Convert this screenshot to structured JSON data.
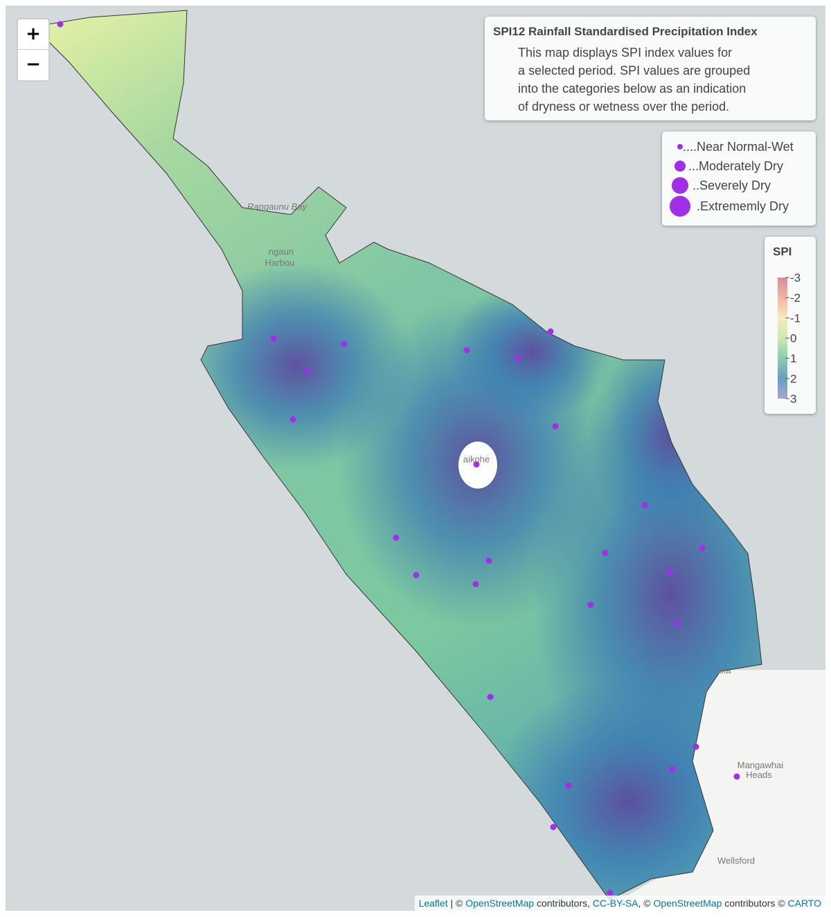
{
  "zoom_controls": {
    "zoom_in": "+",
    "zoom_out": "−"
  },
  "info": {
    "title": "SPI12 Rainfall Standardised Precipitation Index",
    "lines": [
      "This map displays SPI index values for",
      "a selected period. SPI values are grouped",
      "into the categories below as an indication",
      "of dryness or wetness over the period."
    ]
  },
  "legend": {
    "items": [
      "....Near Normal-Wet",
      "...Moderately Dry",
      "..Severely Dry",
      ".Extrememly Dry"
    ]
  },
  "color_scale": {
    "title": "SPI",
    "range": [
      -3,
      3
    ],
    "ticks": [
      -3,
      -2,
      -1,
      0,
      1,
      2,
      3
    ],
    "colors": [
      "#d7788e",
      "#eeaa90",
      "#f6e8b0",
      "#c8e6a4",
      "#78c3a4",
      "#4a8fb7",
      "#9f94cc"
    ]
  },
  "place_labels": [
    "Rangaunu Bay",
    "ngaun",
    "Harbou",
    "aikohe",
    "aka",
    "Mangawhai",
    "Heads",
    "Wellsford"
  ],
  "attribution": [
    "Leaflet",
    " | © ",
    "OpenStreetMap",
    " contributors, ",
    "CC-BY-SA",
    ", © ",
    "OpenStreetMap",
    " contributors © ",
    "CARTO"
  ]
}
